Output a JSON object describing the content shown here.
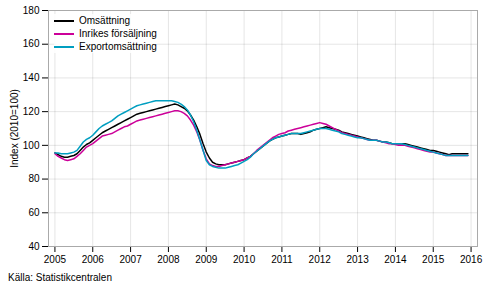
{
  "chart_data": {
    "type": "line",
    "ylabel": "Index (2010=100)",
    "source": "Källa: Statistikcentralen",
    "xlim": [
      2004.83,
      2016.17
    ],
    "xticks": [
      2005,
      2006,
      2007,
      2008,
      2009,
      2010,
      2011,
      2012,
      2013,
      2014,
      2015,
      2016
    ],
    "ylim": [
      40,
      180
    ],
    "yticks": [
      40,
      60,
      80,
      100,
      120,
      140,
      160,
      180
    ],
    "grid": true,
    "legend": "upper left",
    "x": [
      2005,
      2005.083333,
      2005.166667,
      2005.25,
      2005.333333,
      2005.416667,
      2005.5,
      2005.583333,
      2005.666667,
      2005.75,
      2005.833333,
      2005.916667,
      2006,
      2006.083333,
      2006.166667,
      2006.25,
      2006.333333,
      2006.416667,
      2006.5,
      2006.583333,
      2006.666667,
      2006.75,
      2006.833333,
      2006.916667,
      2007,
      2007.083333,
      2007.166667,
      2007.25,
      2007.333333,
      2007.416667,
      2007.5,
      2007.583333,
      2007.666667,
      2007.75,
      2007.833333,
      2007.916667,
      2008,
      2008.083333,
      2008.166667,
      2008.25,
      2008.333333,
      2008.416667,
      2008.5,
      2008.583333,
      2008.666667,
      2008.75,
      2008.833333,
      2008.916667,
      2009,
      2009.083333,
      2009.166667,
      2009.25,
      2009.333333,
      2009.416667,
      2009.5,
      2009.583333,
      2009.666667,
      2009.75,
      2009.833333,
      2009.916667,
      2010,
      2010.083333,
      2010.166667,
      2010.25,
      2010.333333,
      2010.416667,
      2010.5,
      2010.583333,
      2010.666667,
      2010.75,
      2010.833333,
      2010.916667,
      2011,
      2011.083333,
      2011.166667,
      2011.25,
      2011.333333,
      2011.416667,
      2011.5,
      2011.583333,
      2011.666667,
      2011.75,
      2011.833333,
      2011.916667,
      2012,
      2012.083333,
      2012.166667,
      2012.25,
      2012.333333,
      2012.416667,
      2012.5,
      2012.583333,
      2012.666667,
      2012.75,
      2012.833333,
      2012.916667,
      2013,
      2013.083333,
      2013.166667,
      2013.25,
      2013.333333,
      2013.416667,
      2013.5,
      2013.583333,
      2013.666667,
      2013.75,
      2013.833333,
      2013.916667,
      2014,
      2014.083333,
      2014.166667,
      2014.25,
      2014.333333,
      2014.416667,
      2014.5,
      2014.583333,
      2014.666667,
      2014.75,
      2014.833333,
      2014.916667,
      2015,
      2015.083333,
      2015.166667,
      2015.25,
      2015.333333,
      2015.416667,
      2015.5,
      2015.583333,
      2015.666667,
      2015.75,
      2015.833333,
      2015.916667
    ],
    "series": [
      {
        "name": "Omsättning",
        "color": "#000000",
        "values": [
          95.5,
          94.5,
          93.5,
          93.0,
          93.0,
          93.5,
          94.0,
          95.0,
          97.0,
          99.0,
          100.5,
          101.5,
          103.0,
          104.5,
          106.0,
          107.5,
          108.5,
          109.5,
          110.5,
          111.5,
          112.5,
          113.5,
          114.5,
          115.5,
          116.5,
          117.5,
          118.5,
          119.0,
          119.5,
          120.0,
          120.5,
          121.0,
          121.5,
          122.0,
          122.5,
          123.0,
          123.5,
          124.0,
          124.5,
          124.0,
          123.0,
          122.0,
          120.5,
          118.0,
          115.0,
          111.0,
          106.5,
          101.0,
          96.0,
          92.5,
          90.0,
          89.0,
          88.5,
          88.5,
          88.5,
          89.0,
          89.5,
          90.0,
          90.5,
          91.0,
          91.5,
          92.5,
          93.5,
          95.0,
          96.5,
          98.0,
          99.5,
          101.0,
          102.5,
          103.5,
          104.5,
          105.0,
          105.5,
          106.0,
          106.5,
          107.0,
          107.0,
          107.0,
          106.5,
          107.0,
          107.5,
          108.0,
          109.0,
          109.5,
          110.0,
          110.5,
          111.0,
          110.5,
          110.0,
          109.5,
          109.0,
          108.0,
          107.5,
          107.0,
          106.5,
          106.0,
          105.5,
          105.0,
          104.5,
          104.0,
          103.5,
          103.0,
          103.0,
          102.5,
          102.0,
          102.0,
          101.5,
          101.0,
          101.0,
          101.0,
          101.0,
          101.0,
          100.5,
          100.0,
          99.5,
          99.0,
          98.5,
          98.0,
          97.5,
          97.0,
          97.0,
          96.5,
          96.0,
          95.5,
          95.0,
          94.5,
          95.0,
          95.0,
          95.0,
          95.0,
          95.0,
          95.0
        ]
      },
      {
        "name": "Inrikes försäljning",
        "color": "#cc0099",
        "values": [
          95.0,
          93.5,
          92.5,
          91.5,
          91.0,
          91.5,
          92.0,
          93.5,
          95.0,
          97.0,
          99.0,
          100.0,
          101.0,
          102.5,
          104.0,
          105.5,
          106.0,
          106.5,
          107.0,
          108.0,
          109.0,
          110.0,
          111.0,
          111.5,
          112.5,
          113.5,
          114.5,
          115.0,
          115.5,
          116.0,
          116.5,
          117.0,
          117.5,
          118.0,
          118.5,
          119.0,
          119.5,
          120.0,
          120.5,
          120.5,
          120.0,
          119.0,
          117.5,
          115.0,
          112.0,
          108.0,
          103.0,
          97.0,
          92.0,
          89.0,
          88.0,
          87.5,
          87.5,
          88.0,
          88.5,
          89.0,
          89.5,
          90.0,
          90.5,
          91.0,
          91.5,
          92.5,
          93.5,
          95.0,
          97.0,
          98.5,
          100.0,
          101.5,
          103.0,
          104.5,
          105.5,
          106.5,
          107.0,
          107.5,
          108.5,
          109.0,
          109.5,
          110.0,
          110.5,
          111.0,
          111.5,
          112.0,
          112.5,
          113.0,
          113.5,
          113.0,
          112.5,
          111.5,
          110.5,
          109.5,
          108.5,
          107.5,
          107.0,
          106.5,
          106.0,
          105.5,
          105.0,
          104.5,
          104.0,
          103.5,
          103.0,
          103.0,
          103.0,
          102.5,
          102.0,
          101.5,
          101.0,
          101.0,
          100.5,
          100.0,
          100.0,
          100.0,
          99.5,
          99.0,
          98.5,
          98.0,
          97.5,
          97.0,
          96.5,
          96.0,
          96.0,
          95.5,
          95.0,
          94.5,
          94.0,
          94.0,
          94.0,
          94.0,
          94.0,
          94.0,
          94.0,
          94.0
        ]
      },
      {
        "name": "Exportomsättning",
        "color": "#009ec0",
        "values": [
          95.5,
          95.5,
          95.0,
          95.0,
          95.0,
          95.5,
          96.0,
          97.0,
          99.5,
          102.0,
          103.5,
          104.5,
          106.0,
          108.0,
          110.0,
          111.5,
          112.5,
          113.5,
          114.5,
          116.0,
          117.5,
          118.5,
          119.5,
          120.5,
          121.5,
          122.5,
          123.5,
          124.0,
          124.5,
          125.0,
          125.5,
          126.0,
          126.5,
          126.5,
          126.5,
          126.5,
          126.5,
          126.5,
          126.0,
          125.5,
          124.5,
          123.0,
          121.0,
          118.0,
          114.0,
          109.0,
          103.0,
          97.0,
          91.0,
          88.5,
          87.5,
          87.0,
          86.5,
          86.5,
          86.5,
          87.0,
          87.5,
          88.0,
          88.5,
          89.5,
          90.5,
          91.5,
          93.0,
          95.0,
          96.5,
          98.0,
          99.5,
          101.0,
          102.5,
          103.5,
          104.5,
          105.0,
          105.5,
          106.0,
          106.5,
          107.0,
          107.0,
          107.0,
          107.0,
          107.5,
          108.0,
          108.5,
          109.0,
          109.5,
          110.0,
          110.0,
          110.0,
          109.5,
          109.0,
          108.5,
          108.0,
          107.0,
          106.5,
          106.0,
          105.5,
          105.0,
          104.5,
          104.5,
          104.0,
          103.5,
          103.0,
          103.0,
          103.0,
          102.5,
          102.0,
          102.0,
          101.5,
          101.0,
          101.0,
          101.0,
          101.0,
          100.5,
          100.0,
          99.5,
          99.0,
          98.5,
          98.0,
          97.5,
          97.0,
          96.5,
          96.0,
          95.5,
          95.0,
          94.5,
          94.0,
          94.0,
          94.0,
          94.0,
          94.0,
          94.0,
          94.0,
          94.0
        ]
      }
    ]
  }
}
